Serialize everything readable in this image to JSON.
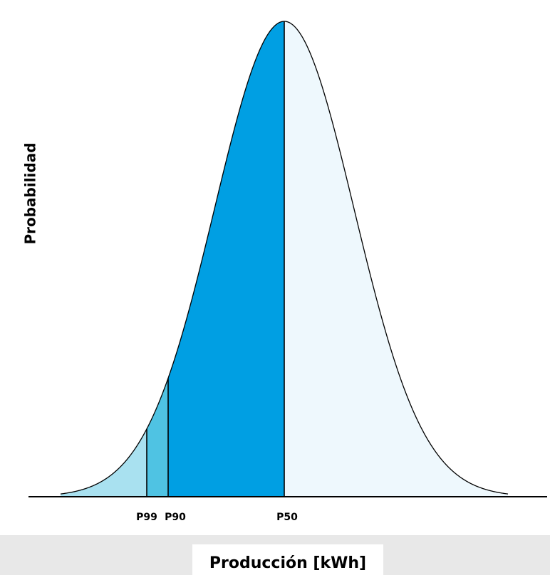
{
  "axis": {
    "y_label": "Probabilidad",
    "x_label": "Producción [kWh]"
  },
  "markers": [
    {
      "label": "P99"
    },
    {
      "label": "P90"
    },
    {
      "label": "P50"
    }
  ]
}
